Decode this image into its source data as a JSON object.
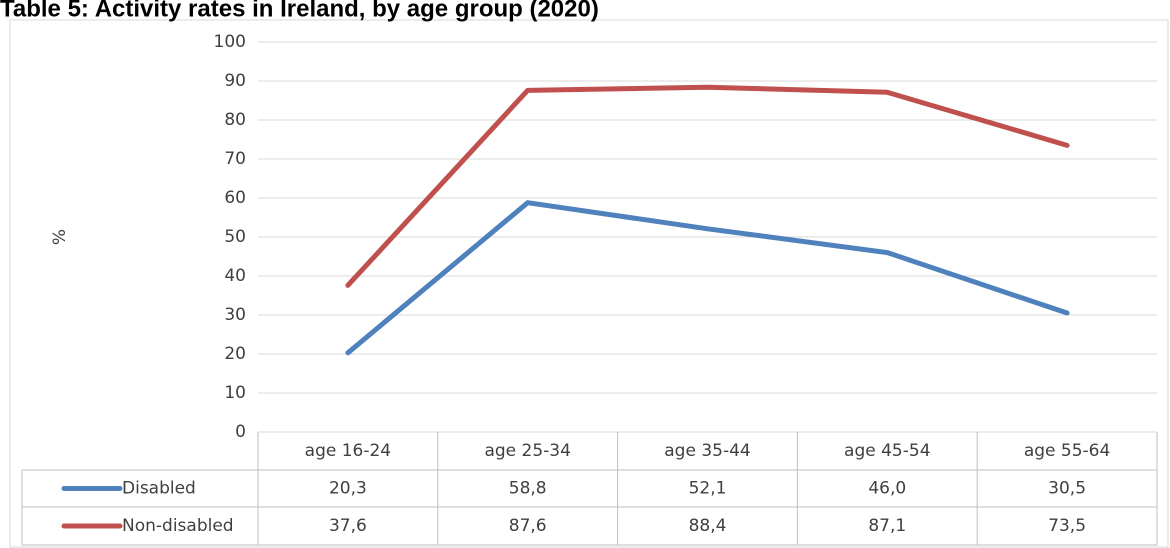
{
  "chart_data": {
    "type": "line",
    "title": "Table 5: Activity rates in Ireland, by age group (2020)",
    "y_label": "%",
    "categories": [
      "age 16-24",
      "age 25-34",
      "age 35-44",
      "age 45-54",
      "age 55-64"
    ],
    "series": [
      {
        "name": "Disabled",
        "color": "#4f81bd",
        "values": [
          20.3,
          58.8,
          52.1,
          46.0,
          30.5
        ],
        "value_labels": [
          "20,3",
          "58,8",
          "52,1",
          "46,0",
          "30,5"
        ]
      },
      {
        "name": "Non-disabled",
        "color": "#c0504d",
        "values": [
          37.6,
          87.6,
          88.4,
          87.1,
          73.5
        ],
        "value_labels": [
          "37,6",
          "87,6",
          "88,4",
          "87,1",
          "73,5"
        ]
      }
    ],
    "ylim": [
      0,
      100
    ],
    "yticks": [
      0,
      10,
      20,
      30,
      40,
      50,
      60,
      70,
      80,
      90,
      100
    ],
    "grid": true
  }
}
